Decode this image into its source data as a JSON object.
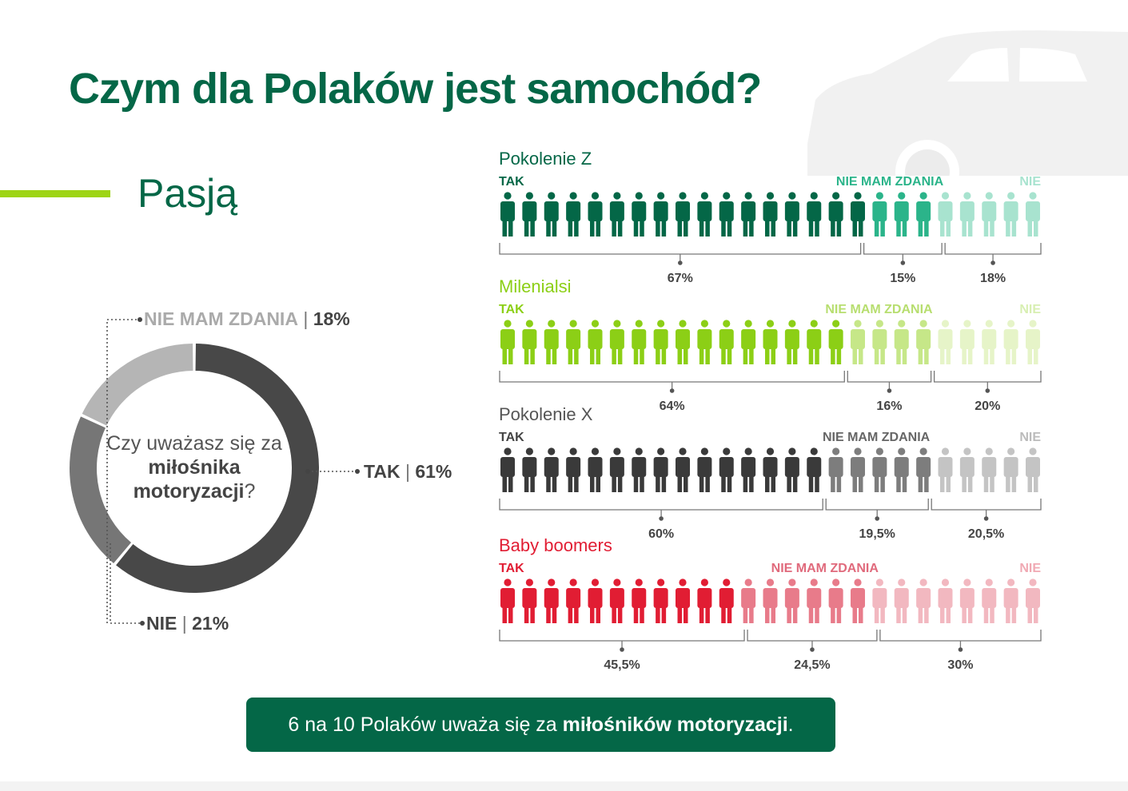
{
  "title": "Czym dla Polaków jest samochód?",
  "subtitle": "Pasją",
  "donut": {
    "question_pre": "Czy uważasz się za ",
    "question_bold": "miłośnika motoryzacji",
    "question_post": "?",
    "colors": {
      "TAK": "#484848",
      "NIE": "#767676",
      "NIE MAM ZDANIA": "#b5b5b5"
    },
    "labels": {
      "nie_mam_zdania": {
        "name": "NIE MAM ZDANIA",
        "sep": "|",
        "value": "18%"
      },
      "tak": {
        "name": "TAK",
        "sep": "|",
        "value": "61%"
      },
      "nie": {
        "name": "NIE",
        "sep": "|",
        "value": "21%"
      }
    }
  },
  "chart_data": [
    {
      "type": "pie",
      "variant": "donut",
      "categories": [
        "TAK",
        "NIE",
        "NIE MAM ZDANIA"
      ],
      "values": [
        61,
        21,
        18
      ]
    },
    {
      "type": "bar",
      "variant": "pictograph-stacked",
      "segments": [
        "TAK",
        "NIE MAM ZDANIA",
        "NIE"
      ],
      "series": [
        {
          "name": "Pokolenie Z",
          "values": [
            67,
            15,
            18
          ],
          "labels": [
            "67%",
            "15%",
            "18%"
          ],
          "colors": [
            "#046747",
            "#2bb48a",
            "#a8e3cf"
          ]
        },
        {
          "name": "Milenialsi",
          "values": [
            64,
            16,
            20
          ],
          "labels": [
            "64%",
            "16%",
            "20%"
          ],
          "colors": [
            "#8ccf16",
            "#c6e788",
            "#e6f4c8"
          ]
        },
        {
          "name": "Pokolenie X",
          "values": [
            60,
            19.5,
            20.5
          ],
          "labels": [
            "60%",
            "19,5%",
            "20,5%"
          ],
          "colors": [
            "#3a3a3a",
            "#7d7d7d",
            "#c4c4c4"
          ]
        },
        {
          "name": "Baby boomers",
          "values": [
            45.5,
            24.5,
            30
          ],
          "labels": [
            "45,5%",
            "24,5%",
            "30%"
          ],
          "colors": [
            "#e11d33",
            "#e87b8a",
            "#f2b8c0"
          ]
        }
      ],
      "name_colors": [
        "#046747",
        "#8ccf16",
        "#555555",
        "#e11d33"
      ],
      "segment_label_colors": [
        [
          "#046747",
          "#2bb48a",
          "#a8e3cf"
        ],
        [
          "#8ccf16",
          "#b7de6f",
          "#d8efb2"
        ],
        [
          "#444444",
          "#666666",
          "#bbbbbb"
        ],
        [
          "#e11d33",
          "#e06a7c",
          "#f0a9b3"
        ]
      ],
      "people_per_row": 25
    }
  ],
  "callout": {
    "pre": "6 na 10 Polaków uważa się za ",
    "bold": "miłośników motoryzacji",
    "post": "."
  }
}
